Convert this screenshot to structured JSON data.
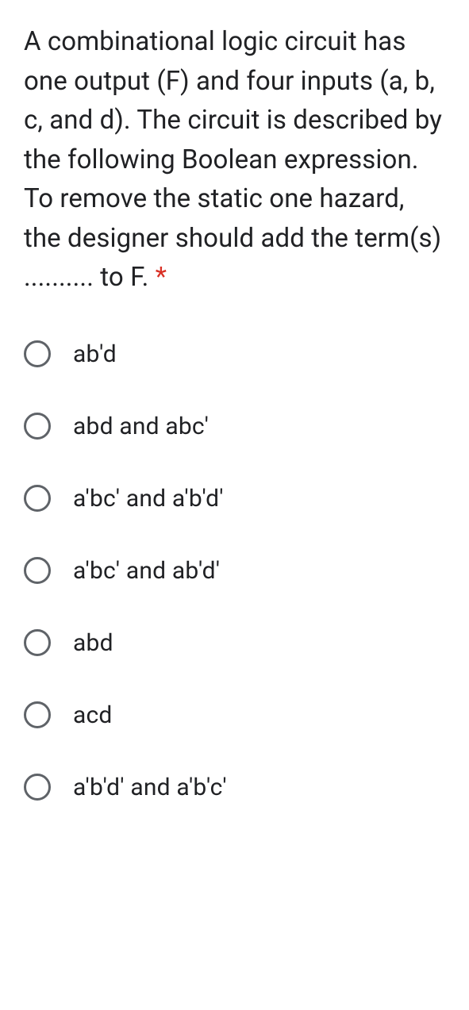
{
  "question": {
    "text": "A combinational logic circuit has one output (F) and four inputs (a, b, c, and d). The circuit is described by the following Boolean expression. To remove the static one hazard, the designer should add the term(s) .......... to F.",
    "required_marker": " *",
    "required_color": "#d93025",
    "text_color": "#202124",
    "fontsize": 33
  },
  "options": [
    {
      "label": "ab'd"
    },
    {
      "label": "abd and abc'"
    },
    {
      "label": "a'bc' and a'b'd'"
    },
    {
      "label": "a'bc' and ab'd'"
    },
    {
      "label": "abd"
    },
    {
      "label": "acd"
    },
    {
      "label": "a'b'd' and a'b'c'"
    }
  ],
  "styling": {
    "background_color": "#ffffff",
    "radio_border_color": "#5f6368",
    "radio_size": 34,
    "option_fontsize": 30,
    "option_text_color": "#202124"
  }
}
